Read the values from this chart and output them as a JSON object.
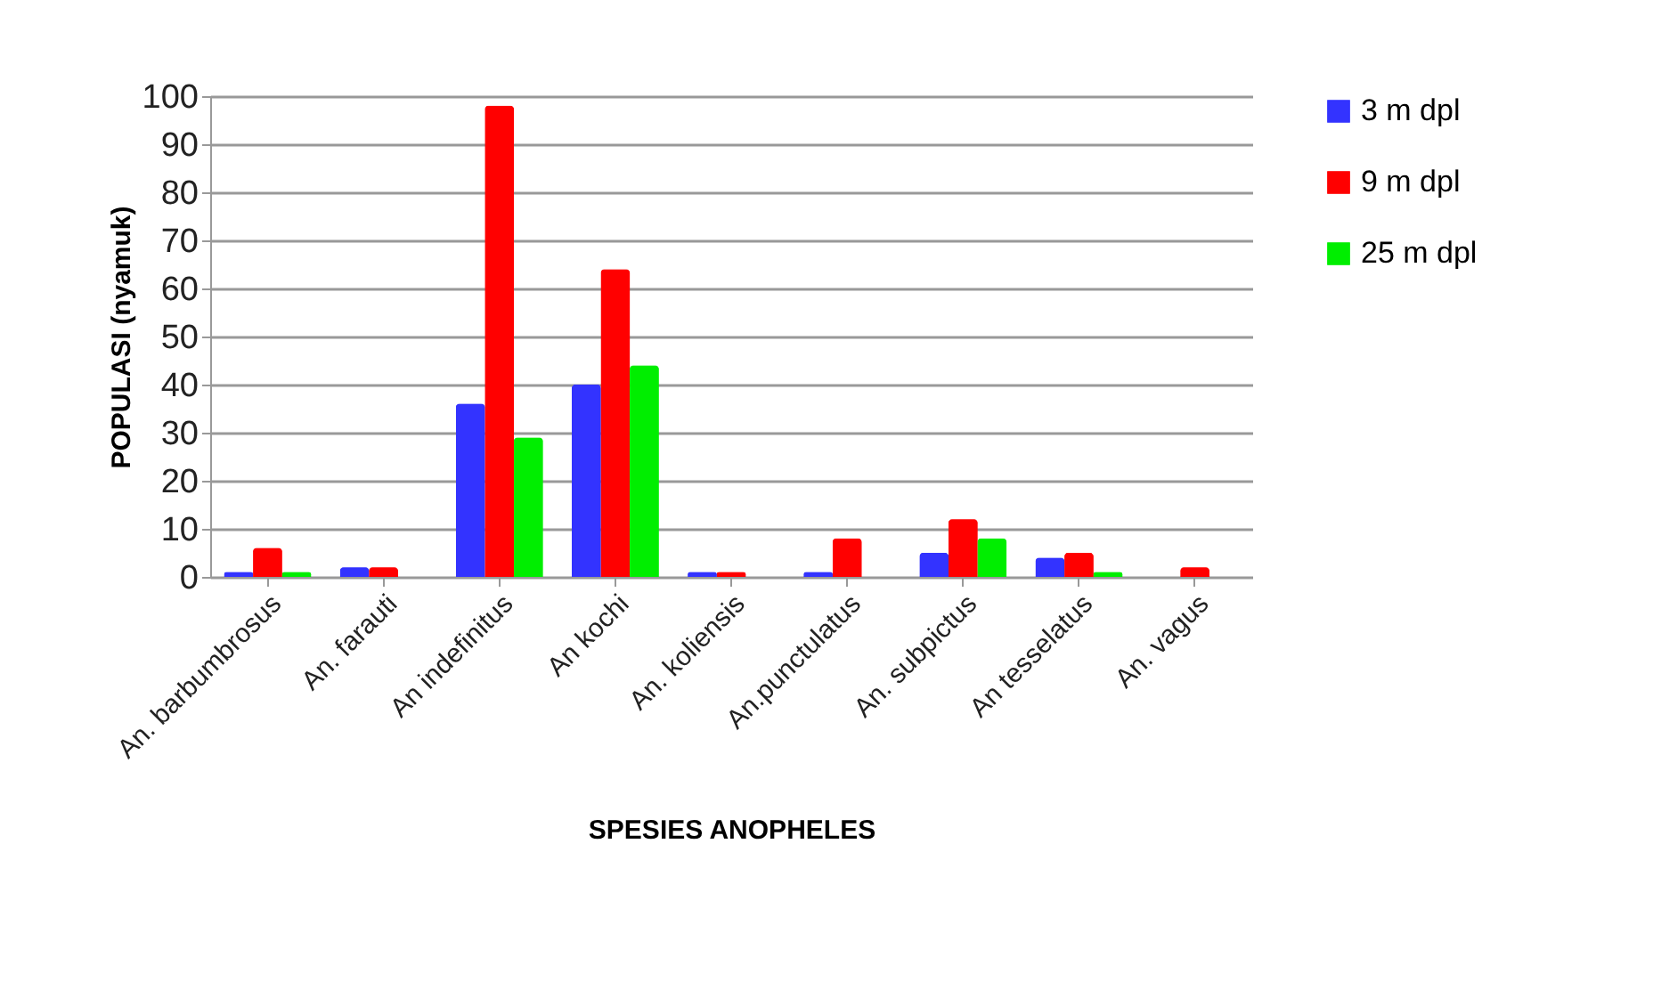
{
  "chart_data": {
    "type": "bar",
    "xlabel": "SPESIES ANOPHELES",
    "ylabel": "POPULASI (nyamuk)",
    "categories": [
      "An. barbumbrosus",
      "An. farauti",
      "An indefinitus",
      "An kochi",
      "An. koliensis",
      "An.punctulatus",
      "An. subpictus",
      "An tesselatus",
      "An. vagus"
    ],
    "series": [
      {
        "name": "3 m dpl",
        "color": "#3333ff",
        "values": [
          1,
          2,
          36,
          40,
          1,
          1,
          5,
          4,
          0
        ]
      },
      {
        "name": "9 m dpl",
        "color": "#ff0000",
        "values": [
          6,
          2,
          98,
          64,
          1,
          8,
          12,
          5,
          2
        ]
      },
      {
        "name": "25 m dpl",
        "color": "#00ee00",
        "values": [
          1,
          0,
          29,
          44,
          0,
          0,
          8,
          1,
          0
        ]
      }
    ],
    "ylim": [
      0,
      100
    ],
    "yticks": [
      0,
      10,
      20,
      30,
      40,
      50,
      60,
      70,
      80,
      90,
      100
    ],
    "grid": "y",
    "legend": "right"
  }
}
